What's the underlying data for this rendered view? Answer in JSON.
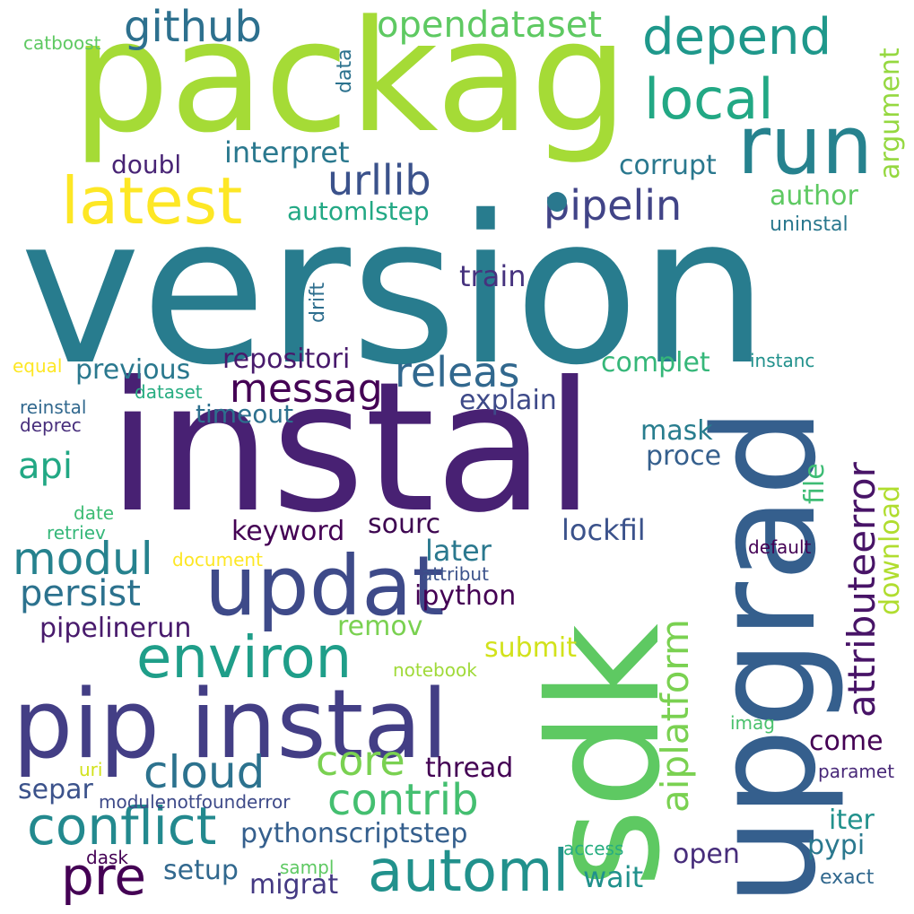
{
  "words": [
    {
      "text": "version",
      "color": "#287c8e"
    },
    {
      "text": "instal",
      "color": "#482173"
    },
    {
      "text": "packag",
      "color": "#a5db36"
    },
    {
      "text": "sdk",
      "color": "#5ec962"
    },
    {
      "text": "upgrad",
      "color": "#355f8d"
    },
    {
      "text": "pip instal",
      "color": "#433e85"
    },
    {
      "text": "updat",
      "color": "#3e4a89"
    },
    {
      "text": "run",
      "color": "#26828e"
    },
    {
      "text": "latest",
      "color": "#fde725"
    },
    {
      "text": "automl",
      "color": "#21918c"
    },
    {
      "text": "environ",
      "color": "#1f9e89"
    },
    {
      "text": "depend",
      "color": "#1f988b"
    },
    {
      "text": "local",
      "color": "#22a884"
    },
    {
      "text": "conflict",
      "color": "#23898e"
    },
    {
      "text": "contrib",
      "color": "#44bf70"
    },
    {
      "text": "cloud",
      "color": "#2c728e"
    },
    {
      "text": "core",
      "color": "#7ad151"
    },
    {
      "text": "pre",
      "color": "#440154"
    },
    {
      "text": "github",
      "color": "#2d708e"
    },
    {
      "text": "opendataset",
      "color": "#5ec962"
    },
    {
      "text": "urllib",
      "color": "#3b528b"
    },
    {
      "text": "pipelin",
      "color": "#414487"
    },
    {
      "text": "releas",
      "color": "#31688e"
    },
    {
      "text": "messag",
      "color": "#440154"
    },
    {
      "text": "modul",
      "color": "#26828e"
    },
    {
      "text": "persist",
      "color": "#2c728e"
    },
    {
      "text": "api",
      "color": "#22a884"
    },
    {
      "text": "aiplatform",
      "color": "#7ad151"
    },
    {
      "text": "attributeerror",
      "color": "#481467"
    },
    {
      "text": "pythonscriptstep",
      "color": "#355f8d"
    },
    {
      "text": "doubl",
      "color": "#482475"
    },
    {
      "text": "interpret",
      "color": "#2a788e"
    },
    {
      "text": "automlstep",
      "color": "#22a884"
    },
    {
      "text": "corrupt",
      "color": "#2a788e"
    },
    {
      "text": "author",
      "color": "#5ec962"
    },
    {
      "text": "uninstal",
      "color": "#2a788e"
    },
    {
      "text": "argument",
      "color": "#95d840"
    },
    {
      "text": "train",
      "color": "#46327e"
    },
    {
      "text": "drift",
      "color": "#2e6e8e"
    },
    {
      "text": "data",
      "color": "#2c728e"
    },
    {
      "text": "catboost",
      "color": "#5ec962"
    },
    {
      "text": "repositori",
      "color": "#481a6c"
    },
    {
      "text": "previous",
      "color": "#2a788e"
    },
    {
      "text": "complet",
      "color": "#35b779"
    },
    {
      "text": "instanc",
      "color": "#21918c"
    },
    {
      "text": "equal",
      "color": "#fde725"
    },
    {
      "text": "dataset",
      "color": "#27ad81"
    },
    {
      "text": "reinstal",
      "color": "#31688e"
    },
    {
      "text": "deprec",
      "color": "#472d7b"
    },
    {
      "text": "timeout",
      "color": "#2d708e"
    },
    {
      "text": "explain",
      "color": "#3e4a89"
    },
    {
      "text": "mask",
      "color": "#287d8e"
    },
    {
      "text": "proce",
      "color": "#355f8d"
    },
    {
      "text": "file",
      "color": "#3dbc74"
    },
    {
      "text": "download",
      "color": "#b0dd2f"
    },
    {
      "text": "keyword",
      "color": "#440154"
    },
    {
      "text": "sourc",
      "color": "#3e0751"
    },
    {
      "text": "lockfil",
      "color": "#3b528b"
    },
    {
      "text": "later",
      "color": "#2a788e"
    },
    {
      "text": "date",
      "color": "#3dbc74"
    },
    {
      "text": "retriev",
      "color": "#35b779"
    },
    {
      "text": "document",
      "color": "#fde725"
    },
    {
      "text": "attribut",
      "color": "#3b528b"
    },
    {
      "text": "default",
      "color": "#440154"
    },
    {
      "text": "ipython",
      "color": "#440154"
    },
    {
      "text": "pipelinerun",
      "color": "#481a6c"
    },
    {
      "text": "remov",
      "color": "#7ad151"
    },
    {
      "text": "submit",
      "color": "#d2e21b"
    },
    {
      "text": "notebook",
      "color": "#a0da39"
    },
    {
      "text": "imag",
      "color": "#4ac16d"
    },
    {
      "text": "come",
      "color": "#440154"
    },
    {
      "text": "thread",
      "color": "#440154"
    },
    {
      "text": "uri",
      "color": "#d2e21b"
    },
    {
      "text": "separ",
      "color": "#3b528b"
    },
    {
      "text": "modulenotfounderror",
      "color": "#3e4a89"
    },
    {
      "text": "paramet",
      "color": "#482878"
    },
    {
      "text": "iter",
      "color": "#21918c"
    },
    {
      "text": "open",
      "color": "#472d7b"
    },
    {
      "text": "pypi",
      "color": "#2a788e"
    },
    {
      "text": "dask",
      "color": "#440154"
    },
    {
      "text": "access",
      "color": "#27ad81"
    },
    {
      "text": "sampl",
      "color": "#5ec962"
    },
    {
      "text": "setup",
      "color": "#31688e"
    },
    {
      "text": "migrat",
      "color": "#443983"
    },
    {
      "text": "wait",
      "color": "#21918c"
    },
    {
      "text": "exact",
      "color": "#31688e"
    }
  ]
}
